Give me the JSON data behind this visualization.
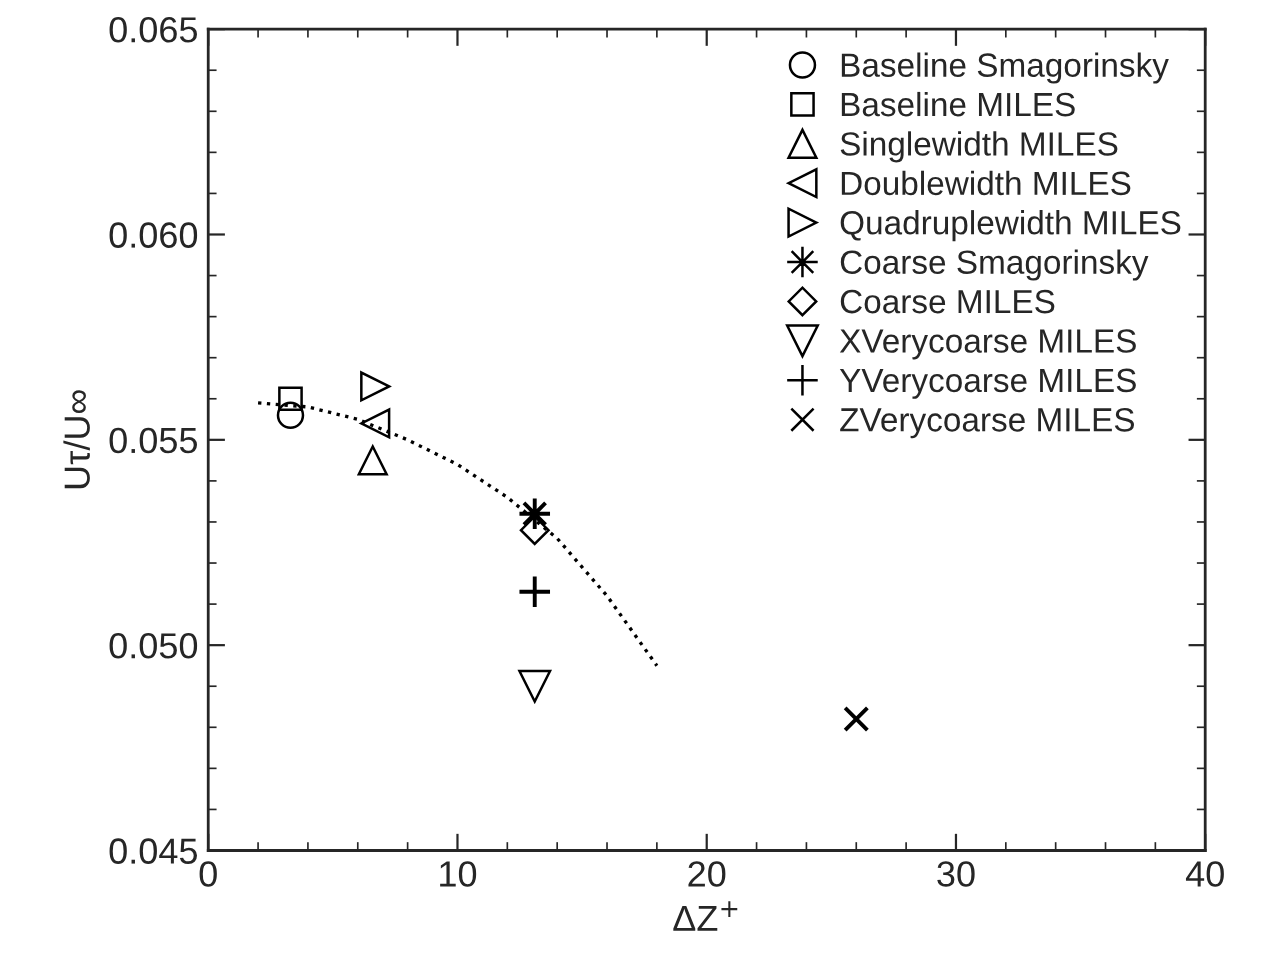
{
  "chart_data": {
    "type": "scatter",
    "xlabel": "ΔZ$^{+}$",
    "ylabel": "Uτ/U∞",
    "xlim": [
      0,
      40
    ],
    "xticks": [
      0,
      10,
      20,
      30,
      40
    ],
    "ylim": [
      0.045,
      0.065
    ],
    "yticks": [
      {
        "value": 0.045,
        "label": "0.045"
      },
      {
        "value": 0.05,
        "label": "0.050"
      },
      {
        "value": 0.055,
        "label": "0.055"
      },
      {
        "value": 0.06,
        "label": "0.060"
      },
      {
        "value": 0.065,
        "label": "0.065"
      }
    ],
    "legend": "top right",
    "grid": false,
    "series": [
      {
        "name": "Baseline Smagorinsky",
        "color": "#000000",
        "marker": "circle",
        "x": [
          3.3
        ],
        "values": [
          0.0556
        ]
      },
      {
        "name": "Baseline MILES",
        "color": "#000000",
        "marker": "square",
        "x": [
          3.3
        ],
        "values": [
          0.056
        ]
      },
      {
        "name": "Singlewidth MILES",
        "color": "#000000",
        "marker": "triangle",
        "x": [
          6.6
        ],
        "values": [
          0.0545
        ]
      },
      {
        "name": "Doublewidth MILES",
        "color": "#000000",
        "marker": "triangle-left",
        "x": [
          6.7
        ],
        "values": [
          0.0554
        ]
      },
      {
        "name": "Quadruplewidth MILES",
        "color": "#000000",
        "marker": "triangle-right",
        "x": [
          6.7
        ],
        "values": [
          0.0563
        ]
      },
      {
        "name": "Coarse Smagorinsky",
        "color": "#000000",
        "marker": "star",
        "x": [
          13.1
        ],
        "values": [
          0.0532
        ]
      },
      {
        "name": "Coarse MILES",
        "color": "#000000",
        "marker": "diamond",
        "x": [
          13.1
        ],
        "values": [
          0.0528
        ]
      },
      {
        "name": "XVerycoarse MILES",
        "color": "#000000",
        "marker": "triangle-down",
        "x": [
          13.1
        ],
        "values": [
          0.049
        ]
      },
      {
        "name": "YVerycoarse MILES",
        "color": "#000000",
        "marker": "plus",
        "x": [
          13.1
        ],
        "values": [
          0.0513
        ]
      },
      {
        "name": "ZVerycoarse MILES",
        "color": "#000000",
        "marker": "cross",
        "x": [
          26
        ],
        "values": [
          0.0482
        ]
      },
      {
        "type": "line",
        "color": "#000000",
        "line_style": "dotted",
        "marker": "none",
        "x": [
          2,
          4,
          6,
          8,
          10,
          12,
          14,
          16,
          18
        ],
        "values": [
          0.0559,
          0.0558,
          0.0555,
          0.055,
          0.0544,
          0.0536,
          0.0526,
          0.0512,
          0.0495
        ]
      }
    ]
  }
}
